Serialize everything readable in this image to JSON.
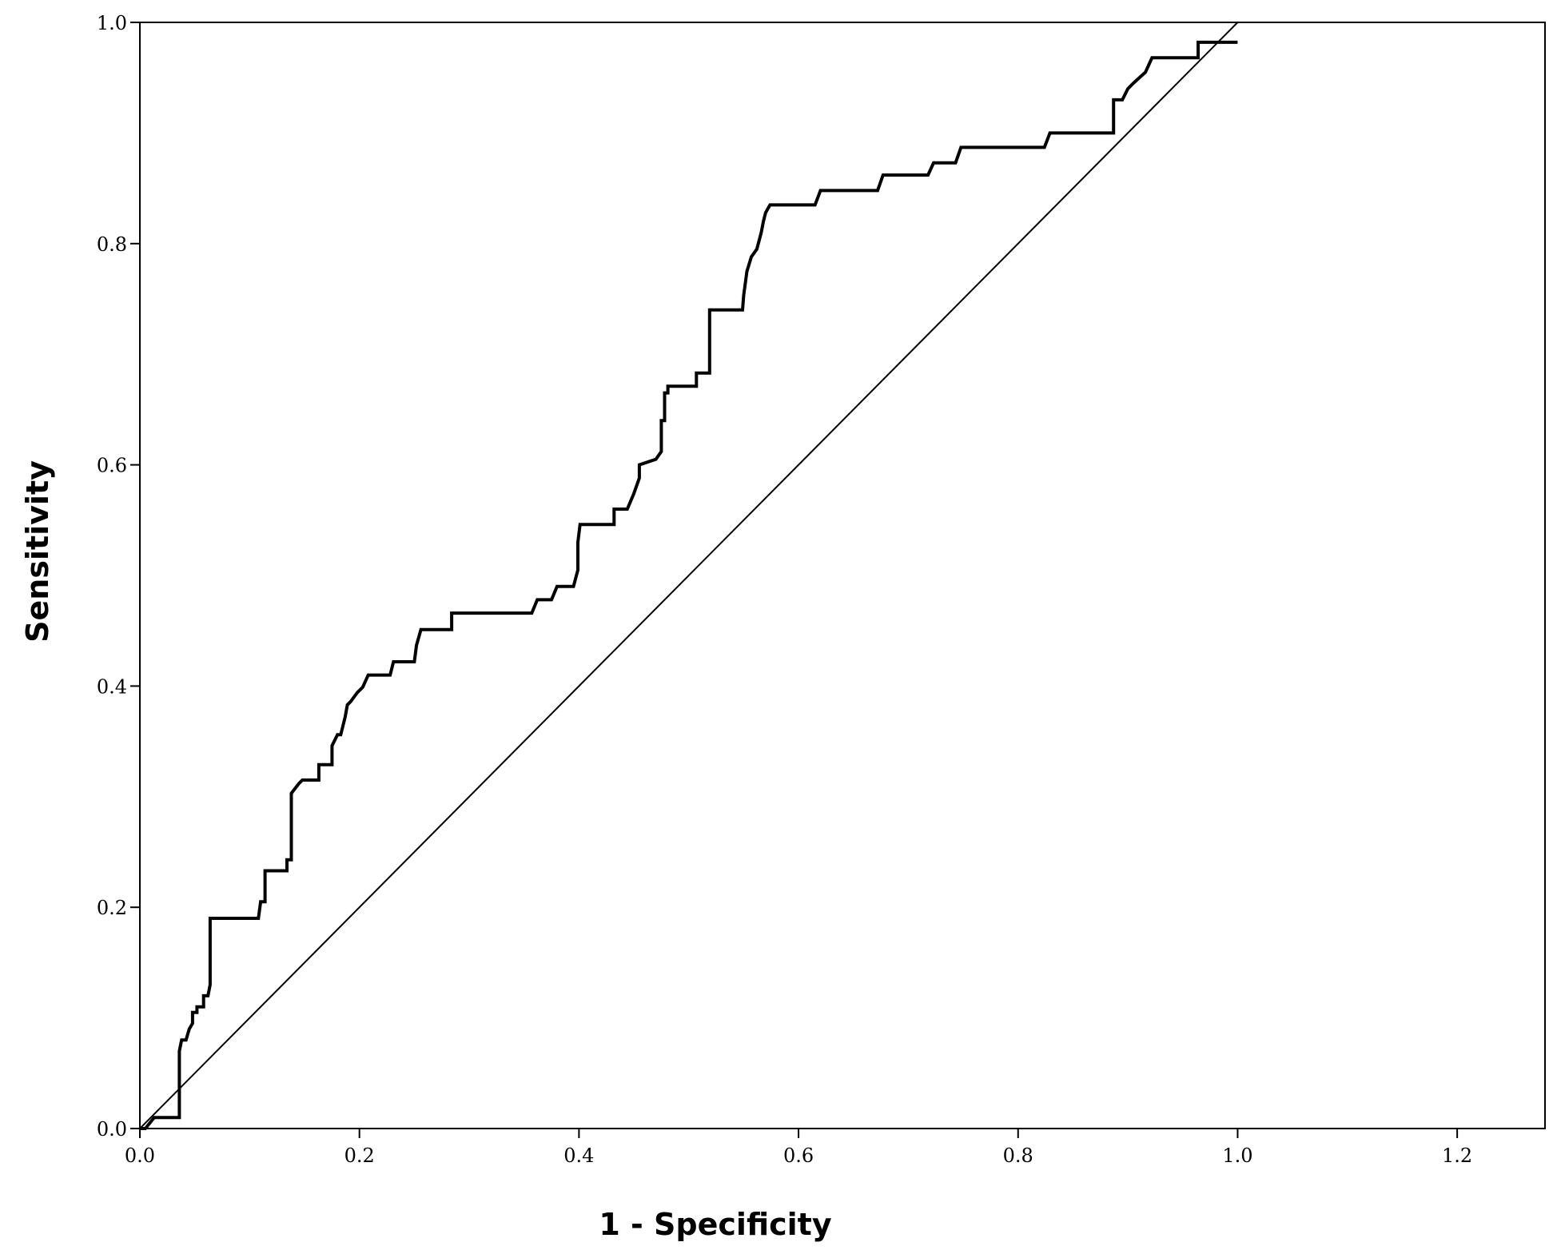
{
  "chart_data": {
    "type": "line",
    "xlabel": "1 - Specificity",
    "ylabel": "Sensitivity",
    "xlim": [
      0.0,
      1.28
    ],
    "ylim": [
      0.0,
      1.0
    ],
    "xticks": [
      0.0,
      0.2,
      0.4,
      0.6,
      0.8,
      1.0,
      1.2
    ],
    "xtick_labels": [
      "0.0",
      "0.2",
      "0.4",
      "0.6",
      "0.8",
      "1.0",
      "1.2"
    ],
    "yticks": [
      0.0,
      0.2,
      0.4,
      0.6,
      0.8,
      1.0
    ],
    "ytick_labels": [
      "0.0",
      "0.2",
      "0.4",
      "0.6",
      "0.8",
      "1.0"
    ],
    "grid": false,
    "legend": "none",
    "series": [
      {
        "role": "roc-curve",
        "x": [
          0.0,
          0.005,
          0.013,
          0.013,
          0.036,
          0.036,
          0.038,
          0.042,
          0.045,
          0.048,
          0.048,
          0.052,
          0.052,
          0.058,
          0.058,
          0.062,
          0.064,
          0.064,
          0.108,
          0.11,
          0.114,
          0.114,
          0.134,
          0.134,
          0.138,
          0.138,
          0.145,
          0.148,
          0.163,
          0.163,
          0.175,
          0.175,
          0.18,
          0.183,
          0.187,
          0.189,
          0.192,
          0.198,
          0.203,
          0.208,
          0.208,
          0.228,
          0.231,
          0.231,
          0.25,
          0.252,
          0.252,
          0.256,
          0.256,
          0.284,
          0.284,
          0.357,
          0.362,
          0.375,
          0.38,
          0.38,
          0.395,
          0.399,
          0.399,
          0.401,
          0.408,
          0.408,
          0.432,
          0.432,
          0.444,
          0.45,
          0.455,
          0.455,
          0.47,
          0.475,
          0.475,
          0.478,
          0.478,
          0.481,
          0.481,
          0.507,
          0.507,
          0.519,
          0.519,
          0.549,
          0.55,
          0.553,
          0.557,
          0.562,
          0.566,
          0.568,
          0.57,
          0.574,
          0.615,
          0.62,
          0.672,
          0.677,
          0.718,
          0.723,
          0.743,
          0.748,
          0.824,
          0.829,
          0.887,
          0.887,
          0.895,
          0.9,
          0.905,
          0.916,
          0.922,
          0.927,
          0.964,
          0.964,
          0.99,
          1.0
        ],
        "y": [
          0.0,
          0.0,
          0.01,
          0.01,
          0.01,
          0.07,
          0.08,
          0.08,
          0.09,
          0.095,
          0.105,
          0.105,
          0.11,
          0.11,
          0.12,
          0.12,
          0.13,
          0.19,
          0.19,
          0.205,
          0.205,
          0.233,
          0.233,
          0.243,
          0.243,
          0.303,
          0.312,
          0.315,
          0.315,
          0.329,
          0.329,
          0.346,
          0.356,
          0.356,
          0.372,
          0.383,
          0.386,
          0.394,
          0.399,
          0.41,
          0.41,
          0.41,
          0.422,
          0.422,
          0.422,
          0.437,
          0.437,
          0.451,
          0.451,
          0.451,
          0.466,
          0.466,
          0.478,
          0.478,
          0.49,
          0.49,
          0.49,
          0.505,
          0.53,
          0.546,
          0.546,
          0.546,
          0.546,
          0.56,
          0.56,
          0.574,
          0.588,
          0.6,
          0.605,
          0.612,
          0.64,
          0.64,
          0.665,
          0.665,
          0.671,
          0.671,
          0.683,
          0.683,
          0.74,
          0.74,
          0.753,
          0.775,
          0.788,
          0.795,
          0.81,
          0.82,
          0.828,
          0.835,
          0.835,
          0.848,
          0.848,
          0.862,
          0.862,
          0.873,
          0.873,
          0.887,
          0.887,
          0.9,
          0.9,
          0.93,
          0.93,
          0.94,
          0.945,
          0.955,
          0.968,
          0.968,
          0.968,
          0.982,
          0.982,
          0.982
        ]
      },
      {
        "role": "reference-line",
        "x": [
          0.0,
          1.0
        ],
        "y": [
          0.0,
          1.0
        ]
      }
    ]
  }
}
